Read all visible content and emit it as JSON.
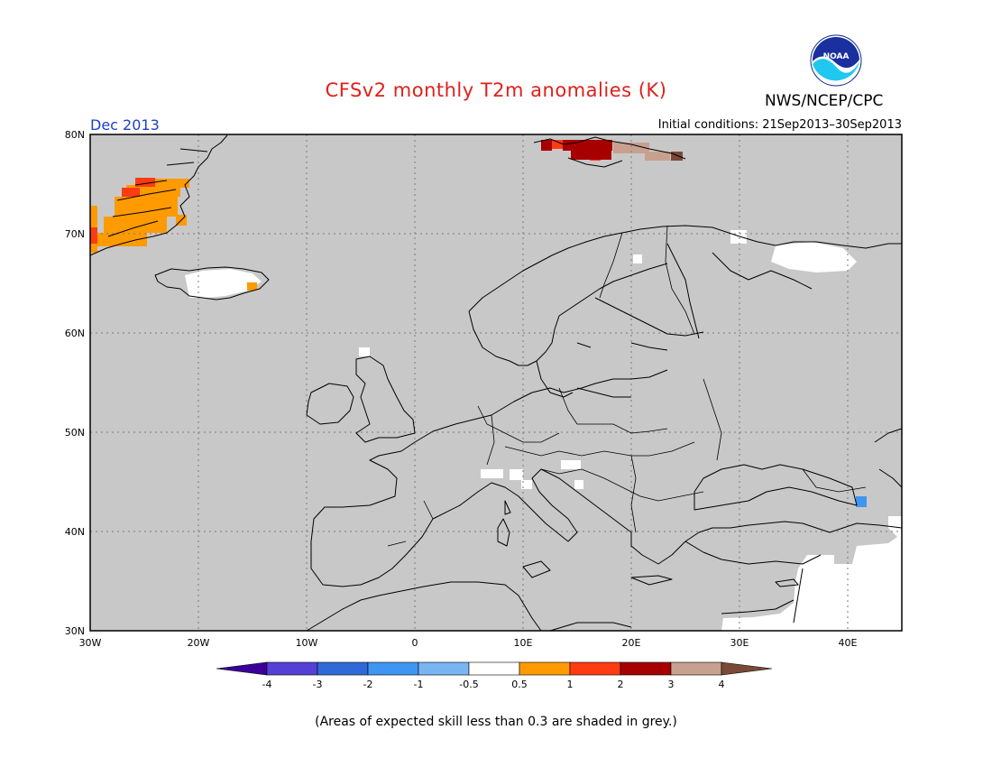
{
  "title": "CFSv2 monthly T2m anomalies (K)",
  "agency": "NWS/NCEP/CPC",
  "logo_text": "NOAA",
  "month_label": "Dec 2013",
  "initial_conditions": "Initial conditions: 21Sep2013–30Sep2013",
  "footnote": "(Areas of expected skill less than 0.3 are shaded in grey.)",
  "axes": {
    "lat_labels": [
      "80N",
      "70N",
      "60N",
      "50N",
      "40N",
      "30N"
    ],
    "lon_labels": [
      "30W",
      "20W",
      "10W",
      "0",
      "10E",
      "20E",
      "30E",
      "40E"
    ]
  },
  "colorbar": {
    "tick_labels": [
      "-4",
      "-3",
      "-2",
      "-1",
      "-0.5",
      "0.5",
      "1",
      "2",
      "3",
      "4"
    ],
    "colors": [
      "#3a0099",
      "#5540d6",
      "#2f69d8",
      "#3f95f2",
      "#7ab5f3",
      "#ffffff",
      "#ff9a00",
      "#ff3b12",
      "#a70000",
      "#c8a090",
      "#7a4a36"
    ]
  },
  "colors": {
    "skill_grey": "#c8c8c8",
    "title_red": "#e0201a",
    "month_blue": "#1c3fc8"
  }
}
